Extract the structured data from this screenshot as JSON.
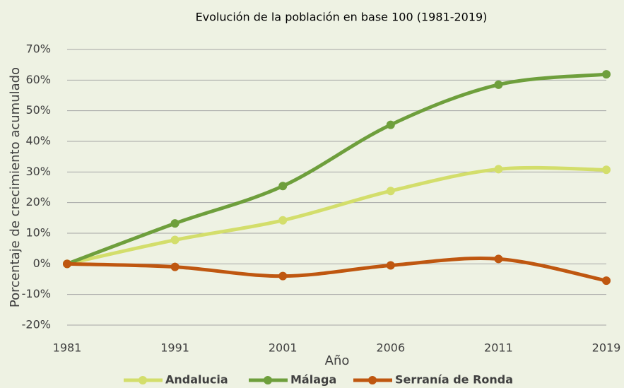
{
  "chart_data": {
    "type": "line",
    "title": "Evolución de la población en base 100 (1981-2019)",
    "x_label": "Año",
    "y_label": "Porcentaje de crecimiento acumulado",
    "categories": [
      "1981",
      "1991",
      "2001",
      "2006",
      "2011",
      "2019"
    ],
    "series": [
      {
        "name": "Andalucia",
        "color": "#d3de6b",
        "values": [
          0,
          7.8,
          14.2,
          23.8,
          30.9,
          30.7
        ]
      },
      {
        "name": "Málaga",
        "color": "#6e9f3c",
        "values": [
          0,
          13.2,
          25.4,
          45.4,
          58.5,
          61.9
        ]
      },
      {
        "name": "Serranía de Ronda",
        "color": "#bf5710",
        "values": [
          0,
          -1,
          -4,
          -0.5,
          1.6,
          -5.5
        ]
      }
    ],
    "ylim": [
      -20,
      70
    ],
    "yticks": [
      {
        "value": -20,
        "label": "-20%"
      },
      {
        "value": -10,
        "label": "-10%"
      },
      {
        "value": 0,
        "label": "0%"
      },
      {
        "value": 10,
        "label": "10%"
      },
      {
        "value": 20,
        "label": "20%"
      },
      {
        "value": 30,
        "label": "30%"
      },
      {
        "value": 40,
        "label": "40%"
      },
      {
        "value": 50,
        "label": "50%"
      },
      {
        "value": 60,
        "label": "60%"
      },
      {
        "value": 70,
        "label": "70%"
      }
    ],
    "grid": true,
    "legend": "bottom"
  }
}
